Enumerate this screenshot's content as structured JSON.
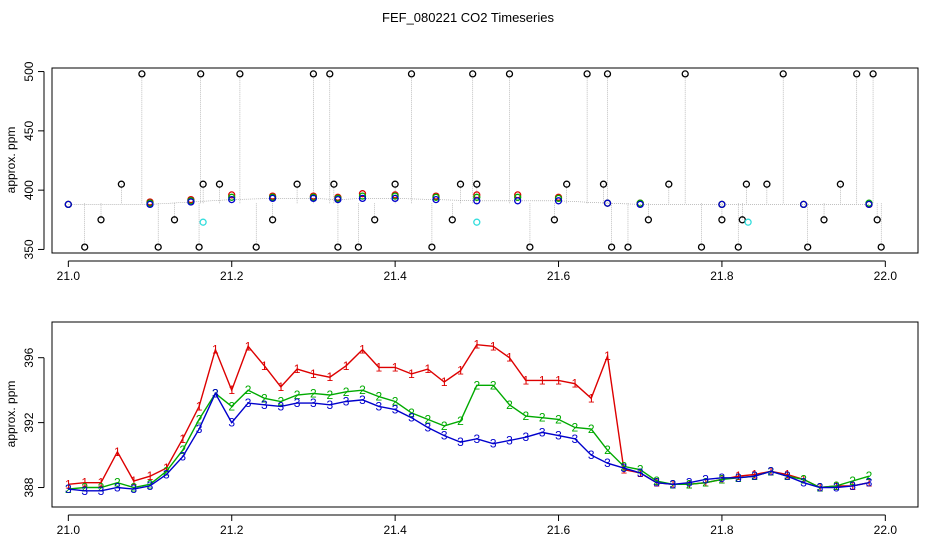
{
  "title": "FEF_080221  CO2 Timeseries",
  "chart_data": [
    {
      "type": "scatter",
      "title": "FEF_080221  CO2 Timeseries",
      "xlabel": "",
      "ylabel": "approx. ppm",
      "xlim": [
        20.98,
        22.04
      ],
      "ylim": [
        347,
        503
      ],
      "xticks": [
        "21.0",
        "21.2",
        "21.4",
        "21.6",
        "21.8",
        "22.0"
      ],
      "xtick_values": [
        21.0,
        21.2,
        21.4,
        21.6,
        21.8,
        22.0
      ],
      "yticks": [
        "350",
        "400",
        "450",
        "500"
      ],
      "ytick_values": [
        350,
        400,
        450,
        500
      ],
      "description_series": [
        "red",
        "green",
        "blue",
        "black outliers",
        "cyan"
      ],
      "series": [
        {
          "name": "1",
          "color": "#dd0000",
          "marker": "circle",
          "x": [
            21.0,
            21.1,
            21.15,
            21.2,
            21.25,
            21.3,
            21.33,
            21.36,
            21.4,
            21.45,
            21.5,
            21.55,
            21.6,
            21.66,
            21.7,
            21.8,
            21.9,
            21.98
          ],
          "y": [
            388,
            390,
            392,
            396,
            395,
            395,
            394,
            397,
            396,
            395,
            396,
            396,
            394,
            389,
            389,
            388,
            388,
            388
          ]
        },
        {
          "name": "2",
          "color": "#00aa00",
          "marker": "circle",
          "x": [
            21.0,
            21.1,
            21.15,
            21.2,
            21.25,
            21.3,
            21.33,
            21.36,
            21.4,
            21.45,
            21.5,
            21.55,
            21.6,
            21.66,
            21.7,
            21.8,
            21.9,
            21.98
          ],
          "y": [
            388,
            389,
            391,
            394,
            394,
            394,
            393,
            395,
            395,
            394,
            394,
            394,
            393,
            389,
            389,
            388,
            388,
            389
          ]
        },
        {
          "name": "3",
          "color": "#0000cc",
          "marker": "circle",
          "x": [
            21.0,
            21.1,
            21.15,
            21.2,
            21.25,
            21.3,
            21.33,
            21.36,
            21.4,
            21.45,
            21.5,
            21.55,
            21.6,
            21.66,
            21.7,
            21.8,
            21.9,
            21.98
          ],
          "y": [
            388,
            388,
            390,
            392,
            393,
            393,
            392,
            393,
            393,
            392,
            391,
            391,
            391,
            389,
            388,
            388,
            388,
            388
          ]
        },
        {
          "name": "outliers",
          "color": "#000000",
          "marker": "circle",
          "x": [
            21.02,
            21.04,
            21.065,
            21.09,
            21.11,
            21.13,
            21.16,
            21.162,
            21.165,
            21.185,
            21.21,
            21.23,
            21.25,
            21.28,
            21.3,
            21.32,
            21.325,
            21.33,
            21.355,
            21.375,
            21.4,
            21.42,
            21.445,
            21.47,
            21.48,
            21.495,
            21.5,
            21.54,
            21.565,
            21.595,
            21.61,
            21.635,
            21.655,
            21.66,
            21.665,
            21.685,
            21.71,
            21.735,
            21.755,
            21.775,
            21.8,
            21.82,
            21.825,
            21.83,
            21.855,
            21.875,
            21.905,
            21.925,
            21.945,
            21.965,
            21.985,
            21.99,
            21.995
          ],
          "y": [
            352,
            375,
            405,
            498,
            352,
            375,
            352,
            498,
            405,
            405,
            498,
            352,
            375,
            405,
            498,
            498,
            405,
            352,
            352,
            375,
            405,
            498,
            352,
            375,
            405,
            498,
            405,
            498,
            352,
            375,
            405,
            498,
            405,
            498,
            352,
            352,
            375,
            405,
            498,
            352,
            375,
            352,
            375,
            405,
            405,
            498,
            352,
            375,
            405,
            498,
            498,
            375,
            352
          ]
        },
        {
          "name": "cyan",
          "color": "#33dddd",
          "marker": "circle",
          "x": [
            21.165,
            21.5,
            21.832
          ],
          "y": [
            373,
            373,
            373
          ]
        }
      ]
    },
    {
      "type": "line",
      "title": "",
      "xlabel": "",
      "ylabel": "approx. ppm",
      "xlim": [
        20.98,
        22.04
      ],
      "ylim": [
        386.8,
        398.2
      ],
      "xticks": [
        "21.0",
        "21.2",
        "21.4",
        "21.6",
        "21.8",
        "22.0"
      ],
      "xtick_values": [
        21.0,
        21.2,
        21.4,
        21.6,
        21.8,
        22.0
      ],
      "yticks": [
        "388",
        "392",
        "396"
      ],
      "ytick_values": [
        388,
        392,
        396
      ],
      "x": [
        21.0,
        21.02,
        21.04,
        21.06,
        21.08,
        21.1,
        21.12,
        21.14,
        21.16,
        21.18,
        21.2,
        21.22,
        21.24,
        21.26,
        21.28,
        21.3,
        21.32,
        21.34,
        21.36,
        21.38,
        21.4,
        21.42,
        21.44,
        21.46,
        21.48,
        21.5,
        21.52,
        21.54,
        21.56,
        21.58,
        21.6,
        21.62,
        21.64,
        21.66,
        21.68,
        21.7,
        21.72,
        21.74,
        21.76,
        21.78,
        21.8,
        21.82,
        21.84,
        21.86,
        21.88,
        21.9,
        21.92,
        21.94,
        21.96,
        21.98
      ],
      "series": [
        {
          "name": "1",
          "color": "#dd0000",
          "values": [
            388.2,
            388.3,
            388.3,
            390.2,
            388.4,
            388.7,
            389.2,
            391.0,
            393.0,
            396.5,
            394.0,
            396.7,
            395.5,
            394.2,
            395.3,
            395.0,
            394.8,
            395.5,
            396.5,
            395.4,
            395.4,
            395.0,
            395.3,
            394.5,
            395.2,
            396.8,
            396.7,
            396.0,
            394.6,
            394.6,
            394.6,
            394.4,
            393.5,
            396.1,
            389.1,
            388.9,
            388.3,
            388.2,
            388.2,
            388.3,
            388.5,
            388.7,
            388.8,
            389.0,
            388.8,
            388.5,
            388.0,
            388.1,
            388.1,
            388.3
          ]
        },
        {
          "name": "2",
          "color": "#00aa00",
          "values": [
            387.9,
            388.0,
            388.0,
            388.3,
            388.0,
            388.2,
            389.0,
            390.3,
            392.2,
            393.8,
            393.0,
            394.0,
            393.5,
            393.3,
            393.7,
            393.8,
            393.7,
            393.9,
            394.0,
            393.6,
            393.3,
            392.6,
            392.2,
            391.8,
            392.1,
            394.3,
            394.3,
            393.1,
            392.4,
            392.3,
            392.2,
            391.7,
            391.6,
            390.3,
            389.3,
            389.1,
            388.4,
            388.2,
            388.2,
            388.3,
            388.5,
            388.6,
            388.7,
            389.0,
            388.7,
            388.5,
            388.0,
            388.1,
            388.4,
            388.7
          ]
        },
        {
          "name": "3",
          "color": "#0000cc",
          "values": [
            387.9,
            387.8,
            387.8,
            388.0,
            387.9,
            388.1,
            388.8,
            389.9,
            391.6,
            393.8,
            392.0,
            393.2,
            393.1,
            393.0,
            393.2,
            393.2,
            393.1,
            393.3,
            393.4,
            393.0,
            392.8,
            392.3,
            391.7,
            391.2,
            390.8,
            391.0,
            390.7,
            390.9,
            391.1,
            391.4,
            391.2,
            391.0,
            390.0,
            389.5,
            389.2,
            388.9,
            388.3,
            388.2,
            388.3,
            388.5,
            388.6,
            388.6,
            388.7,
            389.0,
            388.7,
            388.3,
            388.0,
            388.0,
            388.1,
            388.3
          ]
        }
      ]
    }
  ]
}
